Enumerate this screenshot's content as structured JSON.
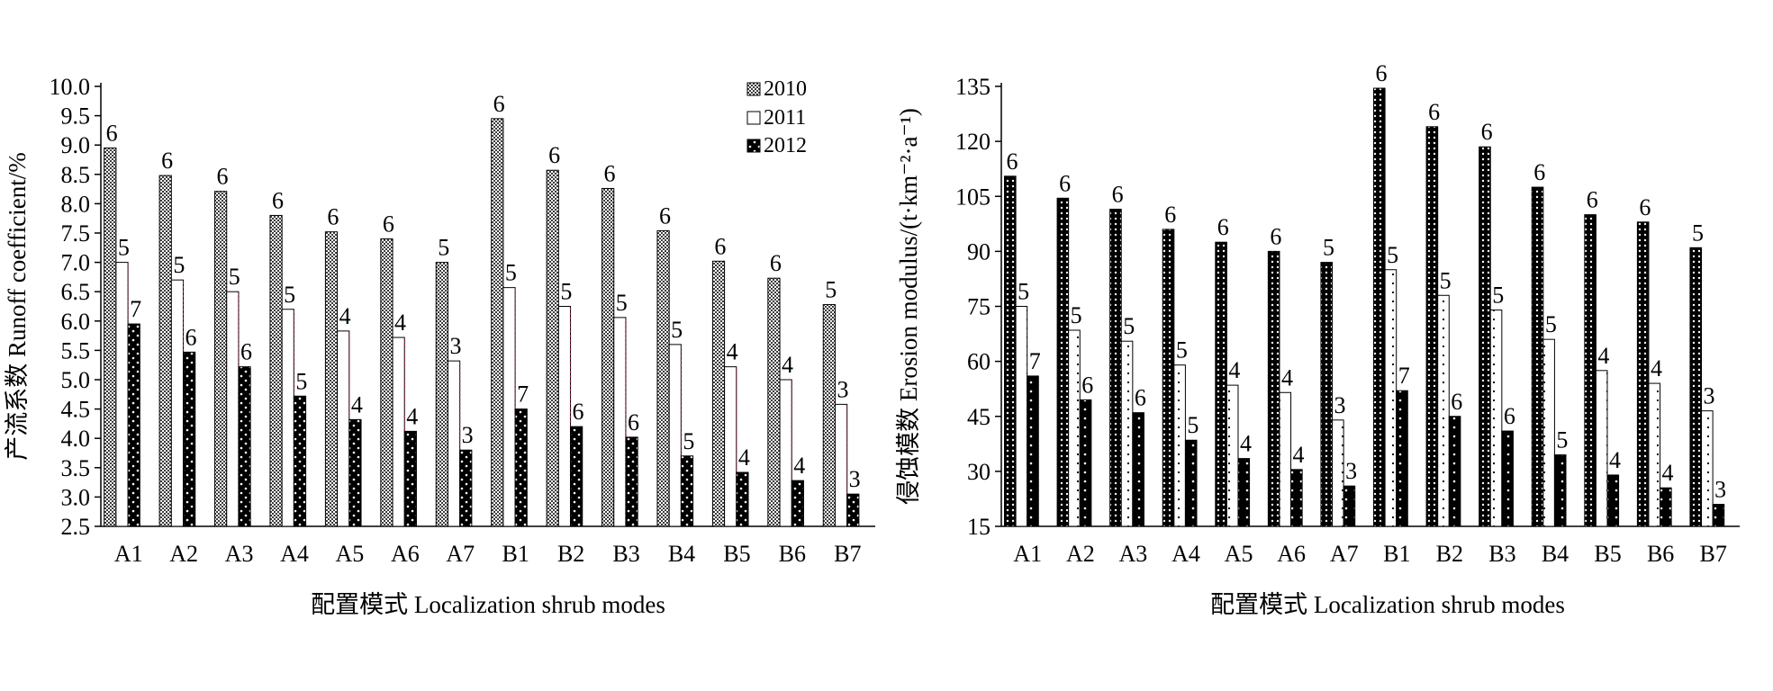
{
  "chart_data": [
    {
      "type": "bar",
      "categories": [
        "A1",
        "A2",
        "A3",
        "A4",
        "A5",
        "A6",
        "A7",
        "B1",
        "B2",
        "B3",
        "B4",
        "B5",
        "B6",
        "B7"
      ],
      "series": [
        {
          "name": "2010",
          "values": [
            8.95,
            8.48,
            8.21,
            7.8,
            7.52,
            7.4,
            7.0,
            9.45,
            8.57,
            8.26,
            7.54,
            7.02,
            6.73,
            6.28
          ]
        },
        {
          "name": "2011",
          "values": [
            7.0,
            6.7,
            6.5,
            6.2,
            5.83,
            5.72,
            5.32,
            6.57,
            6.25,
            6.06,
            5.6,
            5.22,
            5.0,
            4.58
          ]
        },
        {
          "name": "2012",
          "values": [
            5.95,
            5.47,
            5.22,
            4.72,
            4.32,
            4.12,
            3.8,
            4.5,
            4.2,
            4.02,
            3.7,
            3.42,
            3.28,
            3.05
          ]
        }
      ],
      "labels": [
        [
          "6",
          "6",
          "6",
          "6",
          "6",
          "6",
          "5",
          "6",
          "6",
          "6",
          "6",
          "6",
          "6",
          "5"
        ],
        [
          "5",
          "5",
          "5",
          "5",
          "4",
          "4",
          "3",
          "5",
          "5",
          "5",
          "5",
          "4",
          "4",
          "3"
        ],
        [
          "7",
          "6",
          "6",
          "5",
          "4",
          "4",
          "3",
          "7",
          "6",
          "6",
          "5",
          "4",
          "4",
          "3"
        ]
      ],
      "ylim": [
        2.5,
        10.0
      ],
      "yticks": [
        "2.5",
        "3.0",
        "3.5",
        "4.0",
        "4.5",
        "5.0",
        "5.5",
        "6.0",
        "6.5",
        "7.0",
        "7.5",
        "8.0",
        "8.5",
        "9.0",
        "9.5",
        "10.0"
      ],
      "ylabel": "产流系数 Runoff coefficient/%",
      "xlabel": "配置模式 Localization shrub modes",
      "legend": {
        "placement": "top-right",
        "entries": [
          "2010",
          "2011",
          "2012"
        ]
      }
    },
    {
      "type": "bar",
      "categories": [
        "A1",
        "A2",
        "A3",
        "A4",
        "A5",
        "A6",
        "A7",
        "B1",
        "B2",
        "B3",
        "B4",
        "B5",
        "B6",
        "B7"
      ],
      "series": [
        {
          "name": "2010",
          "values": [
            110.5,
            104.5,
            101.5,
            96,
            92.5,
            90,
            87,
            134.5,
            124,
            118.5,
            107.5,
            100,
            98,
            91
          ]
        },
        {
          "name": "2011",
          "values": [
            75,
            68.5,
            65.5,
            59,
            53.5,
            51.5,
            44,
            85,
            78,
            74,
            66,
            57.5,
            54,
            46.5
          ]
        },
        {
          "name": "2012",
          "values": [
            56,
            49.5,
            46,
            38.5,
            33.5,
            30.5,
            26,
            52,
            45,
            41,
            34.5,
            29,
            25.5,
            21
          ]
        }
      ],
      "labels": [
        [
          "6",
          "6",
          "6",
          "6",
          "6",
          "6",
          "5",
          "6",
          "6",
          "6",
          "6",
          "6",
          "6",
          "5"
        ],
        [
          "5",
          "5",
          "5",
          "5",
          "4",
          "4",
          "3",
          "5",
          "5",
          "5",
          "5",
          "4",
          "4",
          "3"
        ],
        [
          "7",
          "6",
          "6",
          "5",
          "4",
          "4",
          "3",
          "7",
          "6",
          "6",
          "5",
          "4",
          "4",
          "3"
        ]
      ],
      "ylim": [
        15,
        135
      ],
      "yticks": [
        "15",
        "30",
        "45",
        "60",
        "75",
        "90",
        "105",
        "120",
        "135"
      ],
      "ylabel": "侵蚀模数 Erosion modulus/(t·km⁻²·a⁻¹)",
      "xlabel": "配置模式 Localization shrub modes"
    }
  ]
}
